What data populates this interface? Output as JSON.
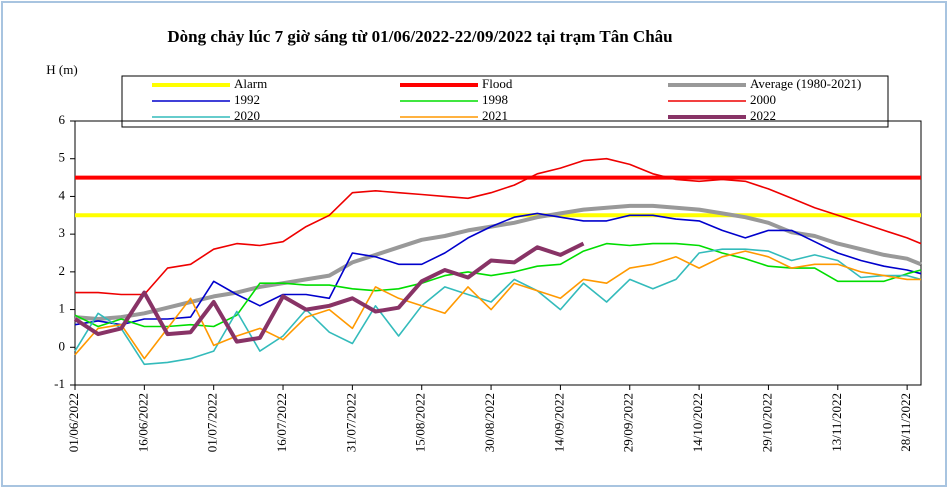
{
  "chart_data": {
    "type": "line",
    "title": "Dòng chảy lúc 7 giờ sáng từ 01/06/2022-22/09/2022 tại trạm Tân Châu",
    "y_label": "H (m)",
    "x": [
      "01/06/2022",
      "06/06/2022",
      "11/06/2022",
      "16/06/2022",
      "21/06/2022",
      "26/06/2022",
      "01/07/2022",
      "06/07/2022",
      "11/07/2022",
      "16/07/2022",
      "21/07/2022",
      "26/07/2022",
      "31/07/2022",
      "05/08/2022",
      "10/08/2022",
      "15/08/2022",
      "20/08/2022",
      "25/08/2022",
      "30/08/2022",
      "04/09/2022",
      "09/09/2022",
      "14/09/2022",
      "19/09/2022",
      "24/09/2022",
      "29/09/2022",
      "04/10/2022",
      "09/10/2022",
      "14/10/2022",
      "19/10/2022",
      "24/10/2022",
      "29/10/2022",
      "03/11/2022",
      "08/11/2022",
      "13/11/2022",
      "18/11/2022",
      "23/11/2022",
      "28/11/2022",
      "01/12/2022"
    ],
    "xlim": [
      "01/06/2022",
      "01/12/2022"
    ],
    "xticks": [
      "01/06/2022",
      "16/06/2022",
      "01/07/2022",
      "16/07/2022",
      "31/07/2022",
      "15/08/2022",
      "30/08/2022",
      "14/09/2022",
      "29/09/2022",
      "14/10/2022",
      "29/10/2022",
      "13/11/2022",
      "28/11/2022"
    ],
    "ylim": [
      -1,
      6
    ],
    "yticks": [
      -1,
      0,
      1,
      2,
      3,
      4,
      5,
      6
    ],
    "grid": false,
    "series": [
      {
        "name": "Alarm",
        "color": "#ffff00",
        "width": 4,
        "values": [
          3.5,
          3.5,
          3.5,
          3.5,
          3.5,
          3.5,
          3.5,
          3.5,
          3.5,
          3.5,
          3.5,
          3.5,
          3.5,
          3.5,
          3.5,
          3.5,
          3.5,
          3.5,
          3.5,
          3.5,
          3.5,
          3.5,
          3.5,
          3.5,
          3.5,
          3.5,
          3.5,
          3.5,
          3.5,
          3.5,
          3.5,
          3.5,
          3.5,
          3.5,
          3.5,
          3.5,
          3.5,
          3.5
        ]
      },
      {
        "name": "Flood",
        "color": "#ff0000",
        "width": 4,
        "values": [
          4.5,
          4.5,
          4.5,
          4.5,
          4.5,
          4.5,
          4.5,
          4.5,
          4.5,
          4.5,
          4.5,
          4.5,
          4.5,
          4.5,
          4.5,
          4.5,
          4.5,
          4.5,
          4.5,
          4.5,
          4.5,
          4.5,
          4.5,
          4.5,
          4.5,
          4.5,
          4.5,
          4.5,
          4.5,
          4.5,
          4.5,
          4.5,
          4.5,
          4.5,
          4.5,
          4.5,
          4.5,
          4.5
        ]
      },
      {
        "name": "Average (1980-2021)",
        "color": "#999999",
        "width": 4,
        "values": [
          0.8,
          0.75,
          0.8,
          0.9,
          1.05,
          1.2,
          1.35,
          1.45,
          1.6,
          1.7,
          1.8,
          1.9,
          2.25,
          2.45,
          2.65,
          2.85,
          2.95,
          3.1,
          3.2,
          3.3,
          3.45,
          3.55,
          3.65,
          3.7,
          3.75,
          3.75,
          3.7,
          3.65,
          3.55,
          3.45,
          3.3,
          3.05,
          2.95,
          2.75,
          2.6,
          2.45,
          2.35,
          2.2
        ]
      },
      {
        "name": "1992",
        "color": "#0000cc",
        "width": 1.6,
        "values": [
          0.6,
          0.7,
          0.6,
          0.75,
          0.75,
          0.8,
          1.75,
          1.4,
          1.1,
          1.4,
          1.4,
          1.3,
          2.5,
          2.4,
          2.2,
          2.2,
          2.5,
          2.9,
          3.2,
          3.45,
          3.55,
          3.45,
          3.35,
          3.35,
          3.5,
          3.5,
          3.4,
          3.35,
          3.1,
          2.9,
          3.1,
          3.1,
          2.8,
          2.5,
          2.3,
          2.15,
          2.05,
          1.95
        ]
      },
      {
        "name": "1998",
        "color": "#00dd00",
        "width": 1.6,
        "values": [
          0.85,
          0.55,
          0.75,
          0.55,
          0.55,
          0.6,
          0.55,
          0.85,
          1.7,
          1.7,
          1.65,
          1.65,
          1.55,
          1.5,
          1.55,
          1.7,
          1.9,
          2.0,
          1.9,
          2.0,
          2.15,
          2.2,
          2.55,
          2.75,
          2.7,
          2.75,
          2.75,
          2.7,
          2.5,
          2.35,
          2.15,
          2.1,
          2.1,
          1.75,
          1.75,
          1.75,
          1.95,
          2.05
        ]
      },
      {
        "name": "2000",
        "color": "#ee0000",
        "width": 1.6,
        "values": [
          1.45,
          1.45,
          1.4,
          1.4,
          2.1,
          2.2,
          2.6,
          2.75,
          2.7,
          2.8,
          3.2,
          3.5,
          4.1,
          4.15,
          4.1,
          4.05,
          4.0,
          3.95,
          4.1,
          4.3,
          4.6,
          4.75,
          4.95,
          5.0,
          4.85,
          4.6,
          4.45,
          4.4,
          4.45,
          4.4,
          4.2,
          3.95,
          3.7,
          3.5,
          3.3,
          3.1,
          2.9,
          2.75
        ]
      },
      {
        "name": "2020",
        "color": "#33bbbb",
        "width": 1.6,
        "values": [
          -0.1,
          0.9,
          0.5,
          -0.45,
          -0.4,
          -0.3,
          -0.1,
          0.95,
          -0.1,
          0.3,
          1.0,
          0.4,
          0.1,
          1.1,
          0.3,
          1.1,
          1.6,
          1.4,
          1.2,
          1.8,
          1.5,
          1.0,
          1.7,
          1.2,
          1.8,
          1.55,
          1.8,
          2.5,
          2.6,
          2.6,
          2.55,
          2.3,
          2.45,
          2.3,
          1.85,
          1.9,
          1.9,
          1.8
        ]
      },
      {
        "name": "2021",
        "color": "#ff9900",
        "width": 1.6,
        "values": [
          -0.2,
          0.5,
          0.6,
          -0.3,
          0.5,
          1.3,
          0.05,
          0.3,
          0.5,
          0.2,
          0.8,
          1.0,
          0.5,
          1.6,
          1.3,
          1.1,
          0.9,
          1.6,
          1.0,
          1.7,
          1.5,
          1.3,
          1.8,
          1.7,
          2.1,
          2.2,
          2.4,
          2.1,
          2.4,
          2.55,
          2.4,
          2.1,
          2.2,
          2.2,
          2.0,
          1.9,
          1.8,
          1.8
        ]
      },
      {
        "name": "2022",
        "color": "#883366",
        "width": 4,
        "values": [
          0.75,
          0.35,
          0.5,
          1.45,
          0.35,
          0.4,
          1.2,
          0.15,
          0.25,
          1.35,
          1.0,
          1.1,
          1.3,
          0.95,
          1.05,
          1.75,
          2.05,
          1.85,
          2.3,
          2.25,
          2.65,
          2.45,
          2.75,
          null,
          null,
          null,
          null,
          null,
          null,
          null,
          null,
          null,
          null,
          null,
          null,
          null,
          null,
          null
        ]
      }
    ]
  }
}
